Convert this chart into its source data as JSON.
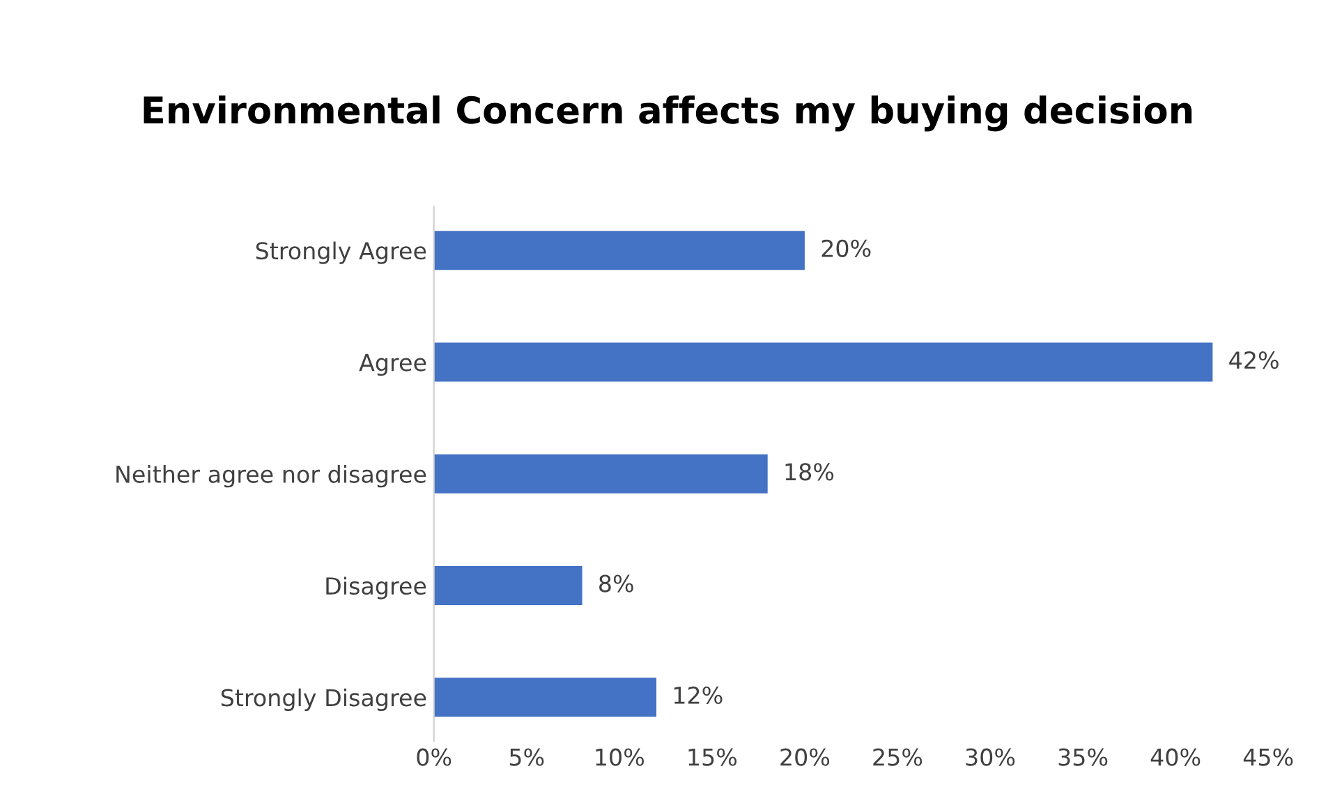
{
  "chart_data": {
    "type": "bar",
    "orientation": "horizontal",
    "title": "Environmental Concern affects my buying decision",
    "categories": [
      "Strongly Agree",
      "Agree",
      "Neither agree nor disagree",
      "Disagree",
      "Strongly Disagree"
    ],
    "values": [
      20,
      42,
      18,
      8,
      12
    ],
    "value_labels": [
      "20%",
      "42%",
      "18%",
      "8%",
      "12%"
    ],
    "color": "#4472c4",
    "xlim": [
      0,
      45
    ],
    "xticks": [
      {
        "value": 0,
        "label": "0%"
      },
      {
        "value": 5,
        "label": "5%"
      },
      {
        "value": 10,
        "label": "10%"
      },
      {
        "value": 15,
        "label": "15%"
      },
      {
        "value": 20,
        "label": "20%"
      },
      {
        "value": 25,
        "label": "25%"
      },
      {
        "value": 30,
        "label": "30%"
      },
      {
        "value": 35,
        "label": "35%"
      },
      {
        "value": 40,
        "label": "40%"
      },
      {
        "value": 45,
        "label": "45%"
      }
    ],
    "grid": false,
    "legend": false
  }
}
